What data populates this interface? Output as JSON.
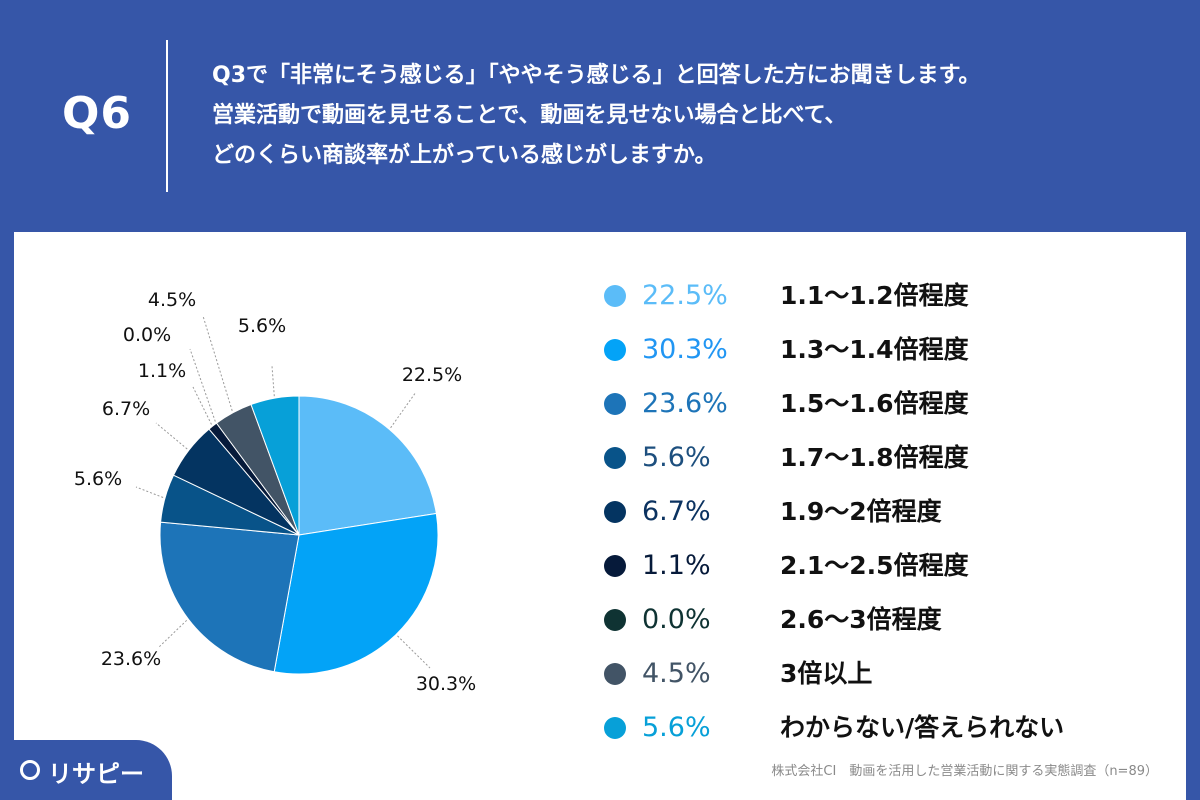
{
  "header": {
    "q_label": "Q6",
    "question_lines": [
      "Q3で「非常にそう感じる」「ややそう感じる」と回答した方にお聞きします。",
      "営業活動で動画を見せることで、動画を見せない場合と比べて、",
      "どのくらい商談率が上がっている感じがしますか。"
    ]
  },
  "chart_data": {
    "type": "pie",
    "categories": [
      "1.1〜1.2倍程度",
      "1.3〜1.4倍程度",
      "1.5〜1.6倍程度",
      "1.7〜1.8倍程度",
      "1.9〜2倍程度",
      "2.1〜2.5倍程度",
      "2.6〜3倍程度",
      "3倍以上",
      "わからない/答えられない"
    ],
    "values": [
      22.5,
      30.3,
      23.6,
      5.6,
      6.7,
      1.1,
      0.0,
      4.5,
      5.6
    ],
    "labels": [
      "22.5%",
      "30.3%",
      "23.6%",
      "5.6%",
      "6.7%",
      "1.1%",
      "0.0%",
      "4.5%",
      "5.6%"
    ],
    "colors": [
      "#5bbcf8",
      "#03a3f7",
      "#1d74b8",
      "#085389",
      "#043461",
      "#061a3a",
      "#0f3333",
      "#425466",
      "#07a0d8"
    ],
    "legend_text_colors": [
      "#5bbcf8",
      "#2196f3",
      "#1d74b8",
      "#1d4f7e",
      "#0b3260",
      "#061a3a",
      "#0f3333",
      "#425466",
      "#07a0d8"
    ],
    "legend_position": "right"
  },
  "footer": {
    "logo_text": "リサピー",
    "source": "株式会社CI　動画を活用した営業活動に関する実態調査（n=89）"
  }
}
